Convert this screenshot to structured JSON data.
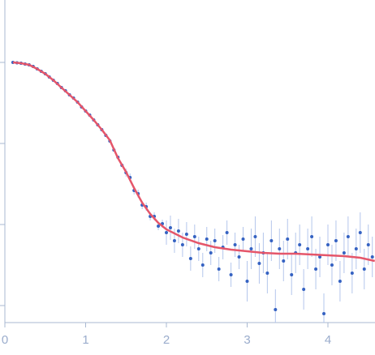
{
  "chart_data": {
    "type": "scatter",
    "x": [
      0.1,
      0.15,
      0.2,
      0.25,
      0.3,
      0.35,
      0.4,
      0.45,
      0.5,
      0.55,
      0.6,
      0.65,
      0.7,
      0.75,
      0.8,
      0.85,
      0.9,
      0.95,
      1.0,
      1.05,
      1.1,
      1.15,
      1.2,
      1.25,
      1.3,
      1.35,
      1.4,
      1.45,
      1.5,
      1.55,
      1.6,
      1.65,
      1.7,
      1.75,
      1.8,
      1.85,
      1.9,
      1.95,
      2.0,
      2.05,
      2.1,
      2.15,
      2.2,
      2.25,
      2.3,
      2.35,
      2.4,
      2.45,
      2.5,
      2.55,
      2.6,
      2.65,
      2.7,
      2.75,
      2.8,
      2.85,
      2.9,
      2.95,
      3.0,
      3.05,
      3.1,
      3.15,
      3.2,
      3.25,
      3.3,
      3.35,
      3.4,
      3.45,
      3.5,
      3.55,
      3.6,
      3.65,
      3.7,
      3.75,
      3.8,
      3.85,
      3.9,
      3.95,
      4.0,
      4.05,
      4.1,
      4.15,
      4.2,
      4.25,
      4.3,
      4.35,
      4.4,
      4.45,
      4.5,
      4.55
    ],
    "values": [
      0.0,
      -0.005,
      -0.01,
      -0.02,
      -0.03,
      -0.05,
      -0.08,
      -0.11,
      -0.14,
      -0.18,
      -0.22,
      -0.26,
      -0.31,
      -0.35,
      -0.4,
      -0.44,
      -0.49,
      -0.55,
      -0.6,
      -0.65,
      -0.71,
      -0.77,
      -0.83,
      -0.9,
      -0.97,
      -1.08,
      -1.17,
      -1.27,
      -1.36,
      -1.42,
      -1.58,
      -1.62,
      -1.76,
      -1.78,
      -1.9,
      -1.9,
      -2.02,
      -1.99,
      -2.1,
      -2.04,
      -2.2,
      -2.08,
      -2.25,
      -2.12,
      -2.42,
      -2.15,
      -2.3,
      -2.5,
      -2.18,
      -2.35,
      -2.2,
      -2.55,
      -2.28,
      -2.1,
      -2.62,
      -2.25,
      -2.4,
      -2.18,
      -2.7,
      -2.3,
      -2.15,
      -2.48,
      -2.35,
      -2.6,
      -2.2,
      -3.05,
      -2.3,
      -2.45,
      -2.18,
      -2.62,
      -2.35,
      -2.25,
      -2.8,
      -2.3,
      -2.15,
      -2.55,
      -2.4,
      -3.1,
      -2.25,
      -2.5,
      -2.2,
      -2.7,
      -2.35,
      -2.15,
      -2.6,
      -2.3,
      -2.1,
      -2.55,
      -2.25,
      -2.4
    ],
    "errors": [
      0.01,
      0.01,
      0.01,
      0.01,
      0.01,
      0.01,
      0.01,
      0.01,
      0.01,
      0.01,
      0.01,
      0.01,
      0.01,
      0.01,
      0.01,
      0.01,
      0.01,
      0.01,
      0.01,
      0.01,
      0.01,
      0.01,
      0.01,
      0.01,
      0.01,
      0.01,
      0.01,
      0.01,
      0.05,
      0.05,
      0.05,
      0.05,
      0.05,
      0.05,
      0.05,
      0.05,
      0.05,
      0.05,
      0.15,
      0.15,
      0.15,
      0.15,
      0.15,
      0.15,
      0.15,
      0.15,
      0.15,
      0.15,
      0.15,
      0.15,
      0.15,
      0.15,
      0.15,
      0.15,
      0.15,
      0.15,
      0.15,
      0.15,
      0.25,
      0.25,
      0.25,
      0.25,
      0.25,
      0.25,
      0.25,
      0.25,
      0.25,
      0.25,
      0.25,
      0.25,
      0.25,
      0.25,
      0.25,
      0.25,
      0.25,
      0.25,
      0.25,
      0.25,
      0.25,
      0.25,
      0.25,
      0.25,
      0.25,
      0.25,
      0.25,
      0.25,
      0.25,
      0.25,
      0.25,
      0.25
    ],
    "color": "#3562c2",
    "error_color": "#b4c6ec",
    "fit": {
      "x": [
        0.1,
        0.2,
        0.3,
        0.4,
        0.5,
        0.6,
        0.7,
        0.8,
        0.9,
        1.0,
        1.1,
        1.2,
        1.3,
        1.4,
        1.5,
        1.6,
        1.7,
        1.8,
        1.9,
        2.0,
        2.2,
        2.4,
        2.6,
        2.8,
        3.0,
        3.2,
        3.4,
        3.6,
        3.8,
        4.0,
        4.2,
        4.4,
        4.58
      ],
      "values": [
        0,
        -0.01,
        -0.03,
        -0.08,
        -0.14,
        -0.22,
        -0.31,
        -0.4,
        -0.49,
        -0.6,
        -0.71,
        -0.83,
        -0.96,
        -1.18,
        -1.35,
        -1.55,
        -1.73,
        -1.87,
        -1.98,
        -2.06,
        -2.16,
        -2.23,
        -2.28,
        -2.31,
        -2.33,
        -2.35,
        -2.36,
        -2.36,
        -2.37,
        -2.38,
        -2.39,
        -2.41,
        -2.45
      ],
      "color": "#e5566a"
    },
    "xlim": [
      0,
      4.583
    ],
    "ylim": [
      -3.21,
      0.77
    ],
    "xticks": [
      0,
      1,
      2,
      3,
      4
    ],
    "yticks": [
      0,
      -1,
      -2,
      -3
    ]
  }
}
